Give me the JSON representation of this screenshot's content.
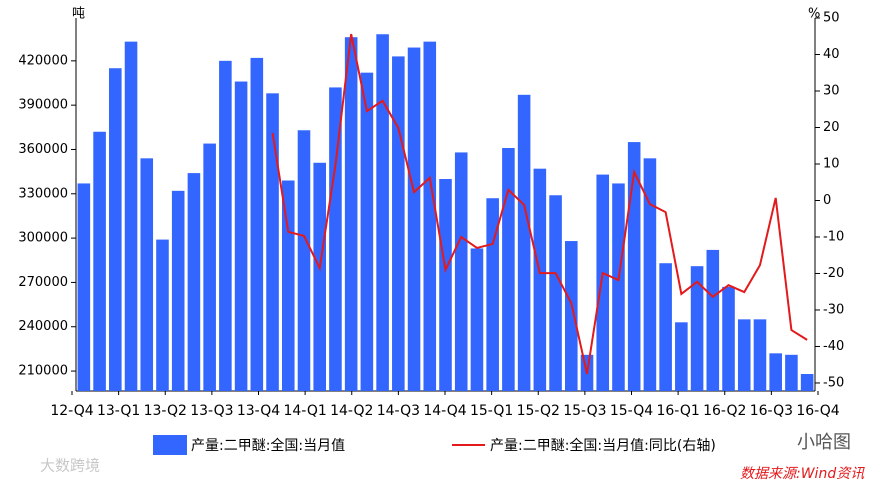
{
  "chart_data": {
    "type": "bar_line",
    "y_unit": "吨",
    "y2_unit": "%",
    "xticks": [
      "12-Q4",
      "13-Q1",
      "13-Q2",
      "13-Q3",
      "13-Q4",
      "14-Q1",
      "14-Q2",
      "14-Q3",
      "14-Q4",
      "15-Q1",
      "15-Q2",
      "15-Q3",
      "15-Q4",
      "16-Q1",
      "16-Q2",
      "16-Q3",
      "16-Q4"
    ],
    "ylim": [
      196500,
      449000
    ],
    "yticks": [
      210000,
      240000,
      270000,
      300000,
      330000,
      360000,
      390000,
      420000
    ],
    "y2lim": [
      -52.2,
      50
    ],
    "y2ticks": [
      -50,
      -40,
      -30,
      -20,
      -10,
      0,
      10,
      20,
      30,
      40,
      50
    ],
    "series": [
      {
        "name": "产量:二甲醚:全国:当月值",
        "type": "bar",
        "color": "#3366ff",
        "values": [
          337000,
          372000,
          415000,
          433000,
          354000,
          299000,
          332000,
          344000,
          364000,
          420000,
          406000,
          422000,
          398000,
          339000,
          373000,
          351000,
          402000,
          436000,
          412000,
          438000,
          423000,
          429000,
          433000,
          340000,
          358000,
          293000,
          327000,
          361000,
          397000,
          347000,
          329000,
          298000,
          221000,
          343000,
          337000,
          365000,
          354000,
          283000,
          243000,
          281000,
          292000,
          267000,
          245000,
          245000,
          222000,
          221000,
          208000
        ]
      },
      {
        "name": "产量:二甲醚:全国:当月值:同比(右轴)",
        "type": "line",
        "axis": "y2",
        "color": "#e31a1c",
        "values": [
          null,
          null,
          null,
          null,
          null,
          null,
          null,
          null,
          null,
          null,
          null,
          null,
          18.5,
          -8.6,
          -9.7,
          -18.5,
          9.7,
          45.6,
          24.5,
          27.3,
          19.9,
          2.3,
          6.2,
          -19.0,
          -10.0,
          -13.0,
          -11.9,
          2.9,
          -1.2,
          -19.9,
          -19.9,
          -28.1,
          -47.5,
          -19.9,
          -21.8,
          7.8,
          -1.0,
          -3.2,
          -25.6,
          -22.3,
          -26.4,
          -23.2,
          -25.1,
          -17.7,
          0.7,
          -35.5,
          -38.2
        ]
      }
    ]
  },
  "watermark": "小哈图",
  "source": "数据来源:Wind资讯",
  "logo": "大数跨境"
}
